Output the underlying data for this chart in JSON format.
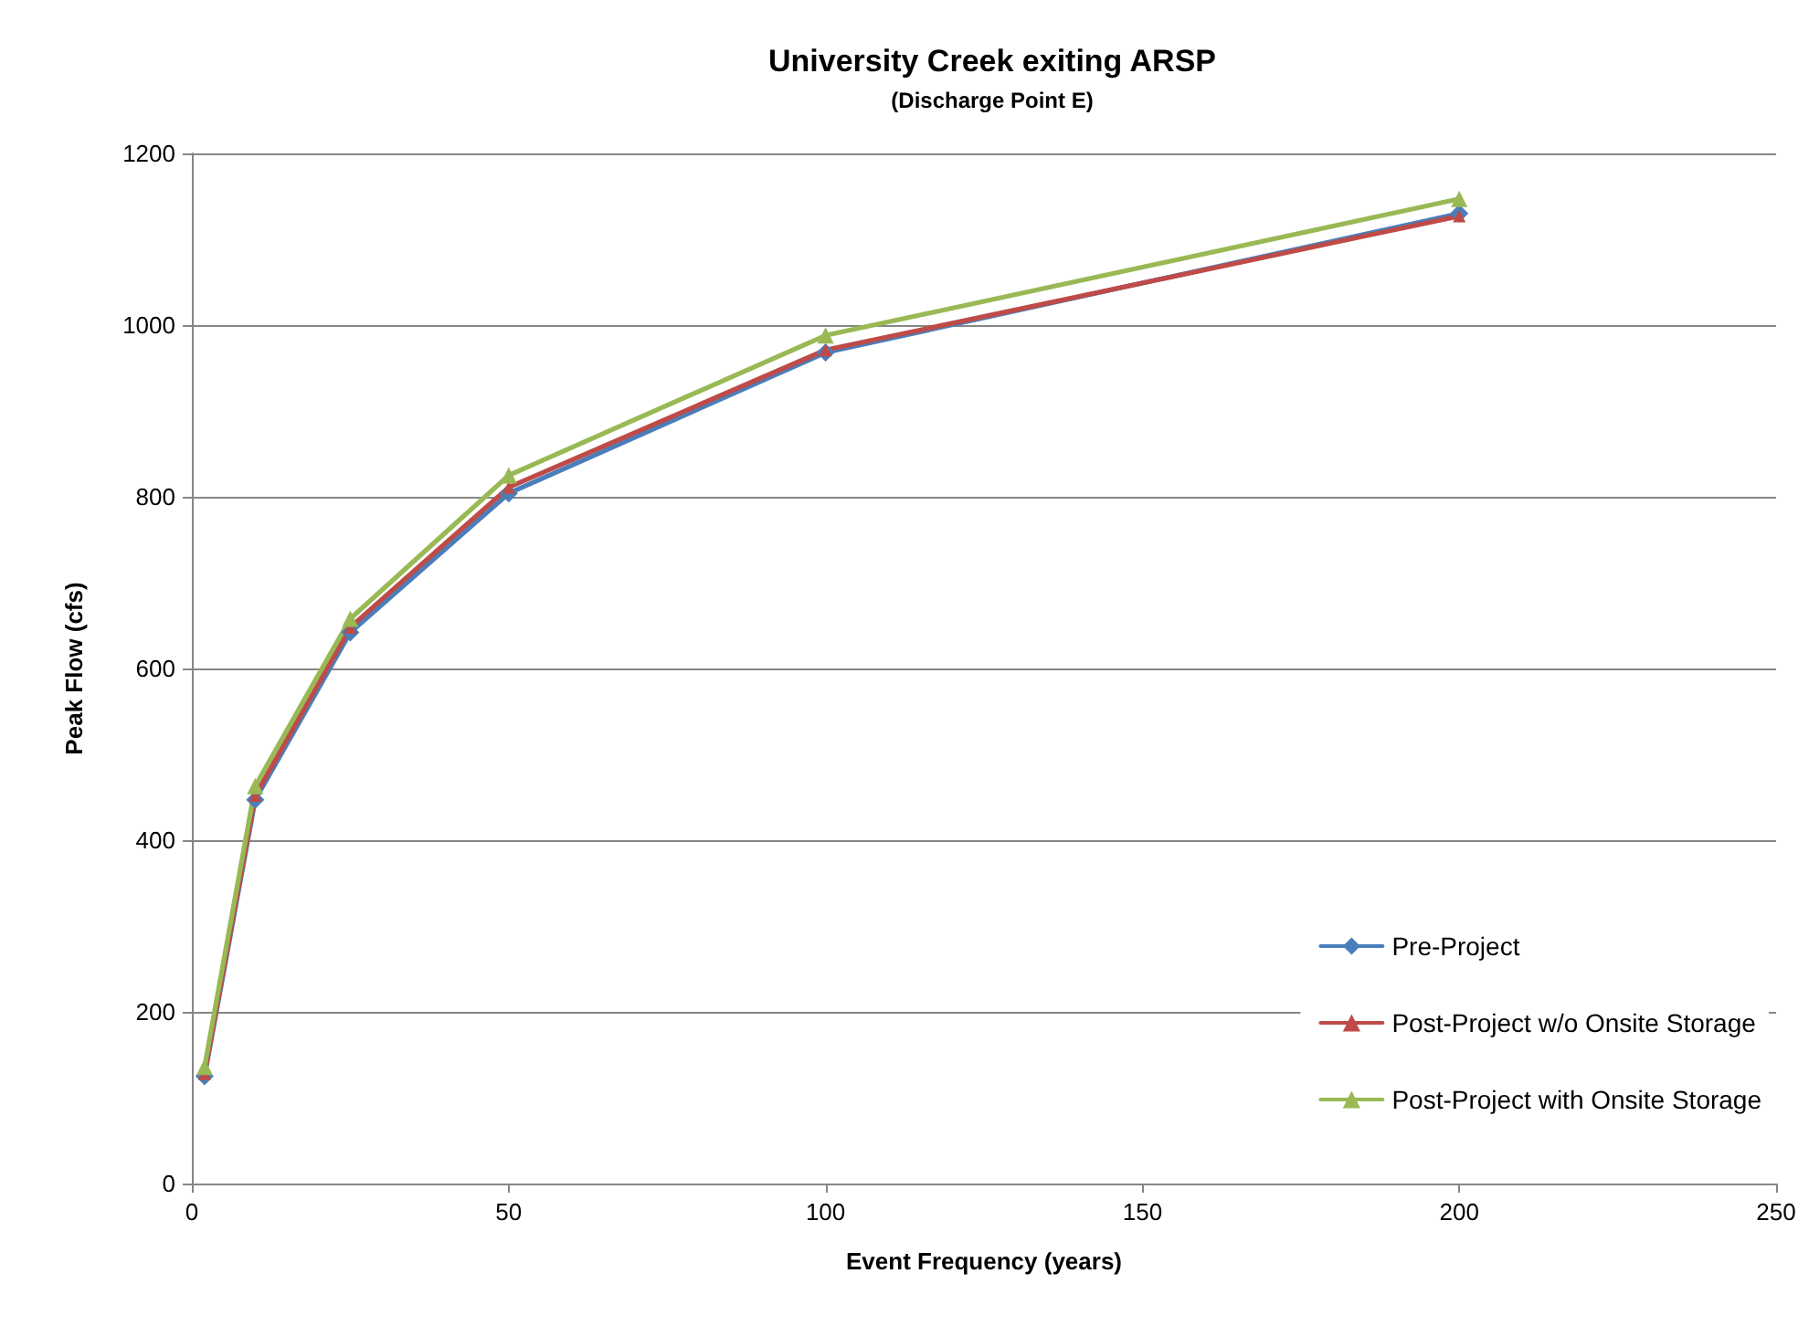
{
  "chart_data": {
    "type": "line",
    "title": "University Creek exiting ARSP",
    "subtitle": "(Discharge Point E)",
    "xlabel": "Event Frequency (years)",
    "ylabel": "Peak Flow (cfs)",
    "x": [
      2,
      10,
      25,
      50,
      100,
      200
    ],
    "series": [
      {
        "name": "Pre-Project",
        "color": "#4a7ebb",
        "marker": "diamond",
        "values": [
          125,
          447,
          642,
          804,
          968,
          1130
        ]
      },
      {
        "name": "Post-Project w/o Onsite Storage",
        "color": "#be4b48",
        "marker": "triangle",
        "values": [
          128,
          452,
          648,
          811,
          971,
          1127
        ]
      },
      {
        "name": "Post-Project with Onsite Storage",
        "color": "#98b954",
        "marker": "triangle",
        "values": [
          136,
          463,
          658,
          825,
          988,
          1147
        ]
      }
    ],
    "xlim": [
      0,
      250
    ],
    "xticks": [
      0,
      50,
      100,
      150,
      200,
      250
    ],
    "ylim": [
      0,
      1200
    ],
    "yticks": [
      0,
      200,
      400,
      600,
      800,
      1000,
      1200
    ],
    "grid": "y",
    "legend": "bottom right",
    "line_style": "solid"
  }
}
